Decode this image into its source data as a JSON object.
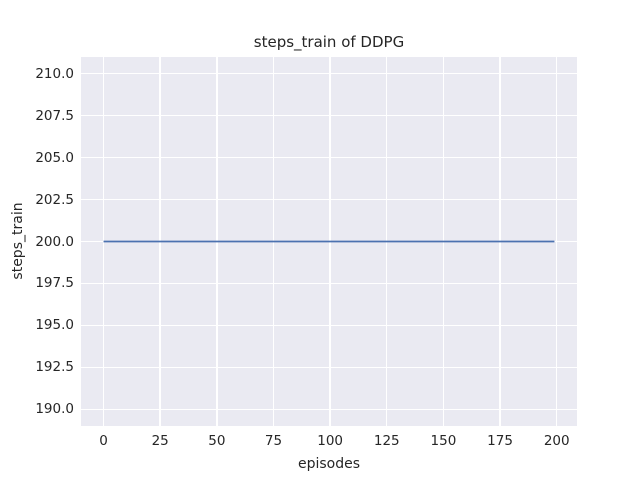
{
  "figure": {
    "background": "#ffffff",
    "text_color": "#262626"
  },
  "chart_data": {
    "type": "line",
    "title": "steps_train of DDPG",
    "xlabel": "episodes",
    "ylabel": "steps_train",
    "xlim": [
      -9.95,
      208.95
    ],
    "ylim": [
      189.0,
      211.0
    ],
    "xticks": {
      "values": [
        0,
        25,
        50,
        75,
        100,
        125,
        150,
        175,
        200
      ],
      "labels": [
        "0",
        "25",
        "50",
        "75",
        "100",
        "125",
        "150",
        "175",
        "200"
      ]
    },
    "yticks": {
      "values": [
        190.0,
        192.5,
        195.0,
        197.5,
        200.0,
        202.5,
        205.0,
        207.5,
        210.0
      ],
      "labels": [
        "190.0",
        "192.5",
        "195.0",
        "197.5",
        "200.0",
        "202.5",
        "205.0",
        "207.5",
        "210.0"
      ]
    },
    "grid": true,
    "legend": false,
    "plot_bg_color": "#eaeaf2",
    "grid_color": "#ffffff",
    "series": [
      {
        "name": "steps_train",
        "color": "#4c72b0",
        "line_width": 1.8,
        "x": [
          0,
          199
        ],
        "y": [
          200,
          200
        ]
      }
    ]
  }
}
